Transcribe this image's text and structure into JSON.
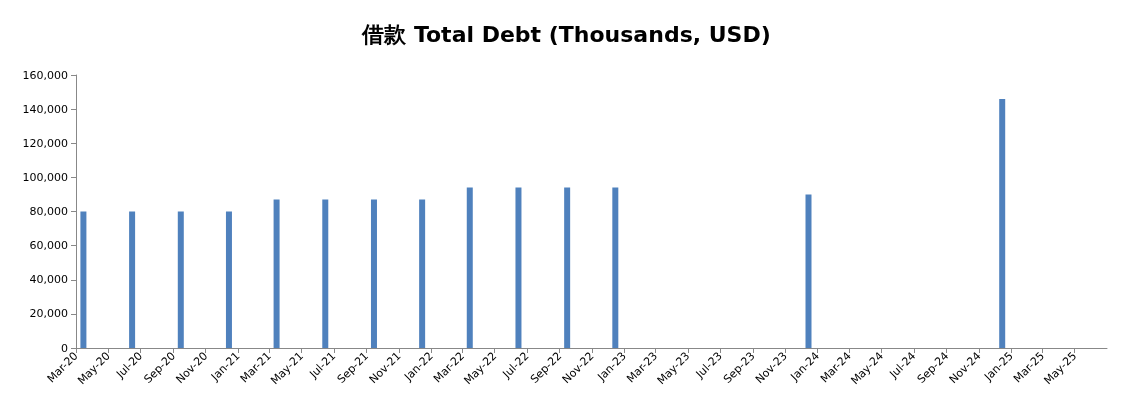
{
  "chart_data": {
    "type": "bar",
    "title": "借款 Total Debt (Thousands, USD)",
    "x": [
      "2020-03-15",
      "2020-06-15",
      "2020-09-15",
      "2020-12-15",
      "2021-03-15",
      "2021-06-15",
      "2021-09-15",
      "2021-12-15",
      "2022-03-15",
      "2022-06-15",
      "2022-09-15",
      "2022-12-15",
      "2023-12-15",
      "2024-12-15"
    ],
    "values": [
      80000,
      80000,
      80000,
      80000,
      87000,
      87000,
      87000,
      87000,
      94000,
      94000,
      94000,
      94000,
      90000,
      146000
    ],
    "color": "#4f81bd",
    "xlim": [
      "2020-03",
      "2025-07"
    ],
    "xticks": [
      {
        "value": "2020-03",
        "label": "Mar-20"
      },
      {
        "value": "2020-05",
        "label": "May-20"
      },
      {
        "value": "2020-07",
        "label": "Jul-20"
      },
      {
        "value": "2020-09",
        "label": "Sep-20"
      },
      {
        "value": "2020-11",
        "label": "Nov-20"
      },
      {
        "value": "2021-01",
        "label": "Jan-21"
      },
      {
        "value": "2021-03",
        "label": "Mar-21"
      },
      {
        "value": "2021-05",
        "label": "May-21"
      },
      {
        "value": "2021-07",
        "label": "Jul-21"
      },
      {
        "value": "2021-09",
        "label": "Sep-21"
      },
      {
        "value": "2021-11",
        "label": "Nov-21"
      },
      {
        "value": "2022-01",
        "label": "Jan-22"
      },
      {
        "value": "2022-03",
        "label": "Mar-22"
      },
      {
        "value": "2022-05",
        "label": "May-22"
      },
      {
        "value": "2022-07",
        "label": "Jul-22"
      },
      {
        "value": "2022-09",
        "label": "Sep-22"
      },
      {
        "value": "2022-11",
        "label": "Nov-22"
      },
      {
        "value": "2023-01",
        "label": "Jan-23"
      },
      {
        "value": "2023-03",
        "label": "Mar-23"
      },
      {
        "value": "2023-05",
        "label": "May-23"
      },
      {
        "value": "2023-07",
        "label": "Jul-23"
      },
      {
        "value": "2023-09",
        "label": "Sep-23"
      },
      {
        "value": "2023-11",
        "label": "Nov-23"
      },
      {
        "value": "2024-01",
        "label": "Jan-24"
      },
      {
        "value": "2024-03",
        "label": "Mar-24"
      },
      {
        "value": "2024-05",
        "label": "May-24"
      },
      {
        "value": "2024-07",
        "label": "Jul-24"
      },
      {
        "value": "2024-09",
        "label": "Sep-24"
      },
      {
        "value": "2024-11",
        "label": "Nov-24"
      },
      {
        "value": "2025-01",
        "label": "Jan-25"
      },
      {
        "value": "2025-03",
        "label": "Mar-25"
      },
      {
        "value": "2025-05",
        "label": "May-25"
      }
    ],
    "ylim": [
      0,
      160000
    ],
    "yticks": [
      {
        "value": 0,
        "label": "0"
      },
      {
        "value": 20000,
        "label": "20,000"
      },
      {
        "value": 40000,
        "label": "40,000"
      },
      {
        "value": 60000,
        "label": "60,000"
      },
      {
        "value": 80000,
        "label": "80,000"
      },
      {
        "value": 100000,
        "label": "100,000"
      },
      {
        "value": 120000,
        "label": "120,000"
      },
      {
        "value": 140000,
        "label": "140,000"
      },
      {
        "value": 160000,
        "label": "160,000"
      }
    ],
    "grid": false
  }
}
